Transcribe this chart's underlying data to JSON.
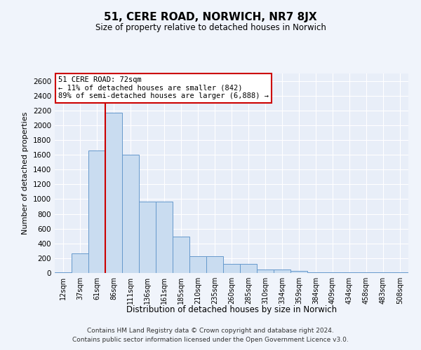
{
  "title": "51, CERE ROAD, NORWICH, NR7 8JX",
  "subtitle": "Size of property relative to detached houses in Norwich",
  "xlabel": "Distribution of detached houses by size in Norwich",
  "ylabel": "Number of detached properties",
  "footer_line1": "Contains HM Land Registry data © Crown copyright and database right 2024.",
  "footer_line2": "Contains public sector information licensed under the Open Government Licence v3.0.",
  "annotation_line1": "51 CERE ROAD: 72sqm",
  "annotation_line2": "← 11% of detached houses are smaller (842)",
  "annotation_line3": "89% of semi-detached houses are larger (6,888) →",
  "bar_color": "#c9dcf0",
  "bar_edge_color": "#6699cc",
  "red_line_color": "#cc0000",
  "annotation_box_color": "#cc0000",
  "categories": [
    "12sqm",
    "37sqm",
    "61sqm",
    "86sqm",
    "111sqm",
    "136sqm",
    "161sqm",
    "185sqm",
    "210sqm",
    "235sqm",
    "260sqm",
    "285sqm",
    "310sqm",
    "334sqm",
    "359sqm",
    "384sqm",
    "409sqm",
    "434sqm",
    "458sqm",
    "483sqm",
    "508sqm"
  ],
  "values": [
    10,
    270,
    1660,
    2170,
    1600,
    970,
    970,
    490,
    230,
    230,
    120,
    120,
    50,
    50,
    30,
    10,
    10,
    10,
    5,
    5,
    5
  ],
  "ylim": [
    0,
    2700
  ],
  "yticks": [
    0,
    200,
    400,
    600,
    800,
    1000,
    1200,
    1400,
    1600,
    1800,
    2000,
    2200,
    2400,
    2600
  ],
  "red_line_x": 2.5,
  "background_color": "#f0f4fb",
  "plot_bg_color": "#e8eef8",
  "fig_width": 6.0,
  "fig_height": 5.0,
  "dpi": 100
}
